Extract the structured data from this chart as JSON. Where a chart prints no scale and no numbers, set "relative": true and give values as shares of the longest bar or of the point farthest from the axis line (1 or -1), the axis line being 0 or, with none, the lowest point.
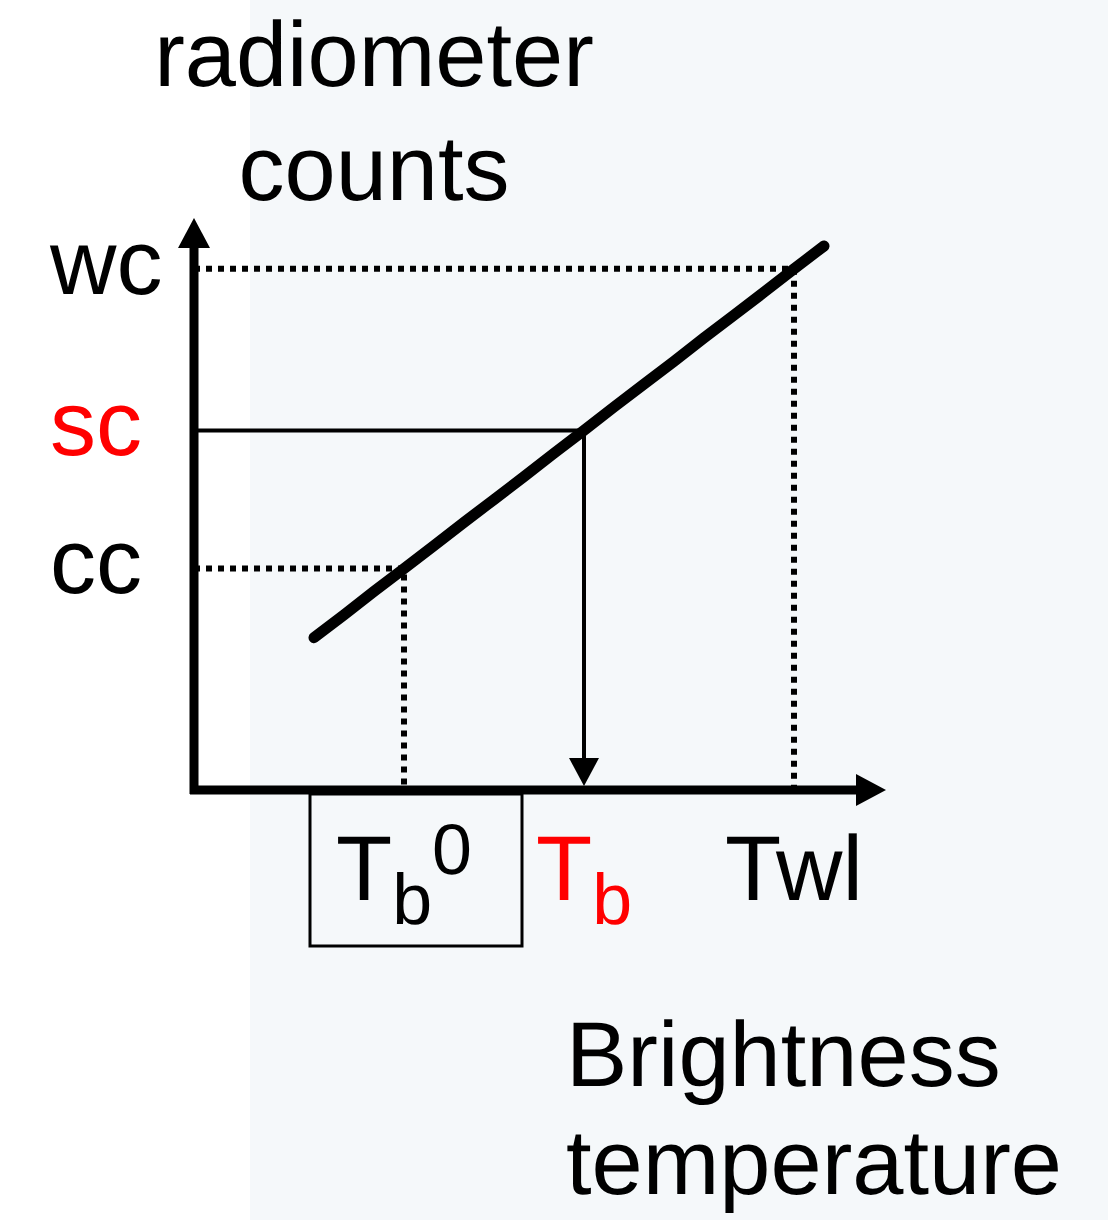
{
  "chart_data": {
    "type": "line",
    "relative": true,
    "xlabel": "Brightness temperature",
    "ylabel": "radiometer counts",
    "categories": [
      null,
      null,
      null,
      null,
      null,
      null,
      "T$_{b}$$^{0}$",
      null,
      null,
      null,
      null,
      null,
      "T$_{b}$",
      null,
      null,
      null,
      null,
      null,
      null,
      "Twl",
      null
    ],
    "values": [
      null,
      null,
      null,
      0.28,
      0.322,
      0.365,
      0.407,
      0.449,
      0.492,
      0.534,
      0.576,
      0.619,
      0.661,
      0.704,
      0.746,
      0.788,
      0.831,
      0.873,
      0.915,
      0.958,
      1
    ],
    "color": "#000000",
    "annotations": [
      "cc",
      "sc",
      "wc"
    ]
  }
}
